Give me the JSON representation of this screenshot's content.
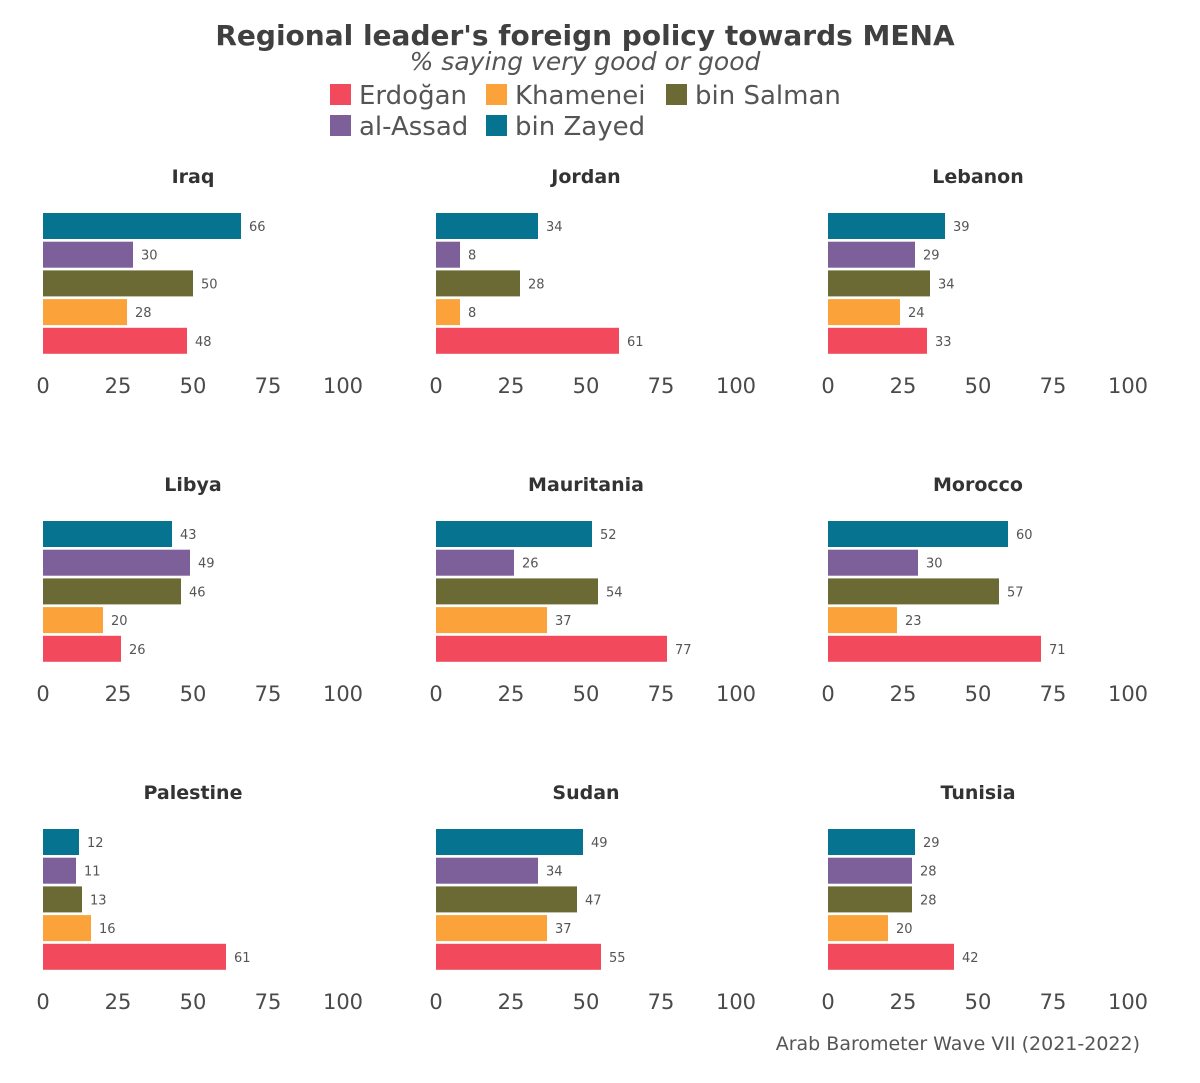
{
  "chart_data": {
    "type": "bar",
    "orientation": "horizontal",
    "title": "Regional leader's foreign policy towards MENA",
    "subtitle": "% saying very good or good",
    "caption": "Arab Barometer Wave VII (2021-2022)",
    "legend": [
      {
        "name": "Erdoğan",
        "color": "#F24A5C"
      },
      {
        "name": "Khamenei",
        "color": "#FBA33A"
      },
      {
        "name": "bin Salman",
        "color": "#6B6A35"
      },
      {
        "name": "al-Assad",
        "color": "#7D5F99"
      },
      {
        "name": "bin Zayed",
        "color": "#067490"
      }
    ],
    "bar_order_top_to_bottom": [
      "bin Zayed",
      "al-Assad",
      "bin Salman",
      "Khamenei",
      "Erdoğan"
    ],
    "xlim": [
      0,
      100
    ],
    "xticks": [
      "0",
      "25",
      "50",
      "75",
      "100"
    ],
    "panels": [
      {
        "country": "Iraq",
        "values": {
          "bin Zayed": 66,
          "al-Assad": 30,
          "bin Salman": 50,
          "Khamenei": 28,
          "Erdoğan": 48
        }
      },
      {
        "country": "Jordan",
        "values": {
          "bin Zayed": 34,
          "al-Assad": 8,
          "bin Salman": 28,
          "Khamenei": 8,
          "Erdoğan": 61
        }
      },
      {
        "country": "Lebanon",
        "values": {
          "bin Zayed": 39,
          "al-Assad": 29,
          "bin Salman": 34,
          "Khamenei": 24,
          "Erdoğan": 33
        }
      },
      {
        "country": "Libya",
        "values": {
          "bin Zayed": 43,
          "al-Assad": 49,
          "bin Salman": 46,
          "Khamenei": 20,
          "Erdoğan": 26
        }
      },
      {
        "country": "Mauritania",
        "values": {
          "bin Zayed": 52,
          "al-Assad": 26,
          "bin Salman": 54,
          "Khamenei": 37,
          "Erdoğan": 77
        }
      },
      {
        "country": "Morocco",
        "values": {
          "bin Zayed": 60,
          "al-Assad": 30,
          "bin Salman": 57,
          "Khamenei": 23,
          "Erdoğan": 71
        }
      },
      {
        "country": "Palestine",
        "values": {
          "bin Zayed": 12,
          "al-Assad": 11,
          "bin Salman": 13,
          "Khamenei": 16,
          "Erdoğan": 61
        }
      },
      {
        "country": "Sudan",
        "values": {
          "bin Zayed": 49,
          "al-Assad": 34,
          "bin Salman": 47,
          "Khamenei": 37,
          "Erdoğan": 55
        }
      },
      {
        "country": "Tunisia",
        "values": {
          "bin Zayed": 29,
          "al-Assad": 28,
          "bin Salman": 28,
          "Khamenei": 20,
          "Erdoğan": 42
        }
      }
    ]
  }
}
